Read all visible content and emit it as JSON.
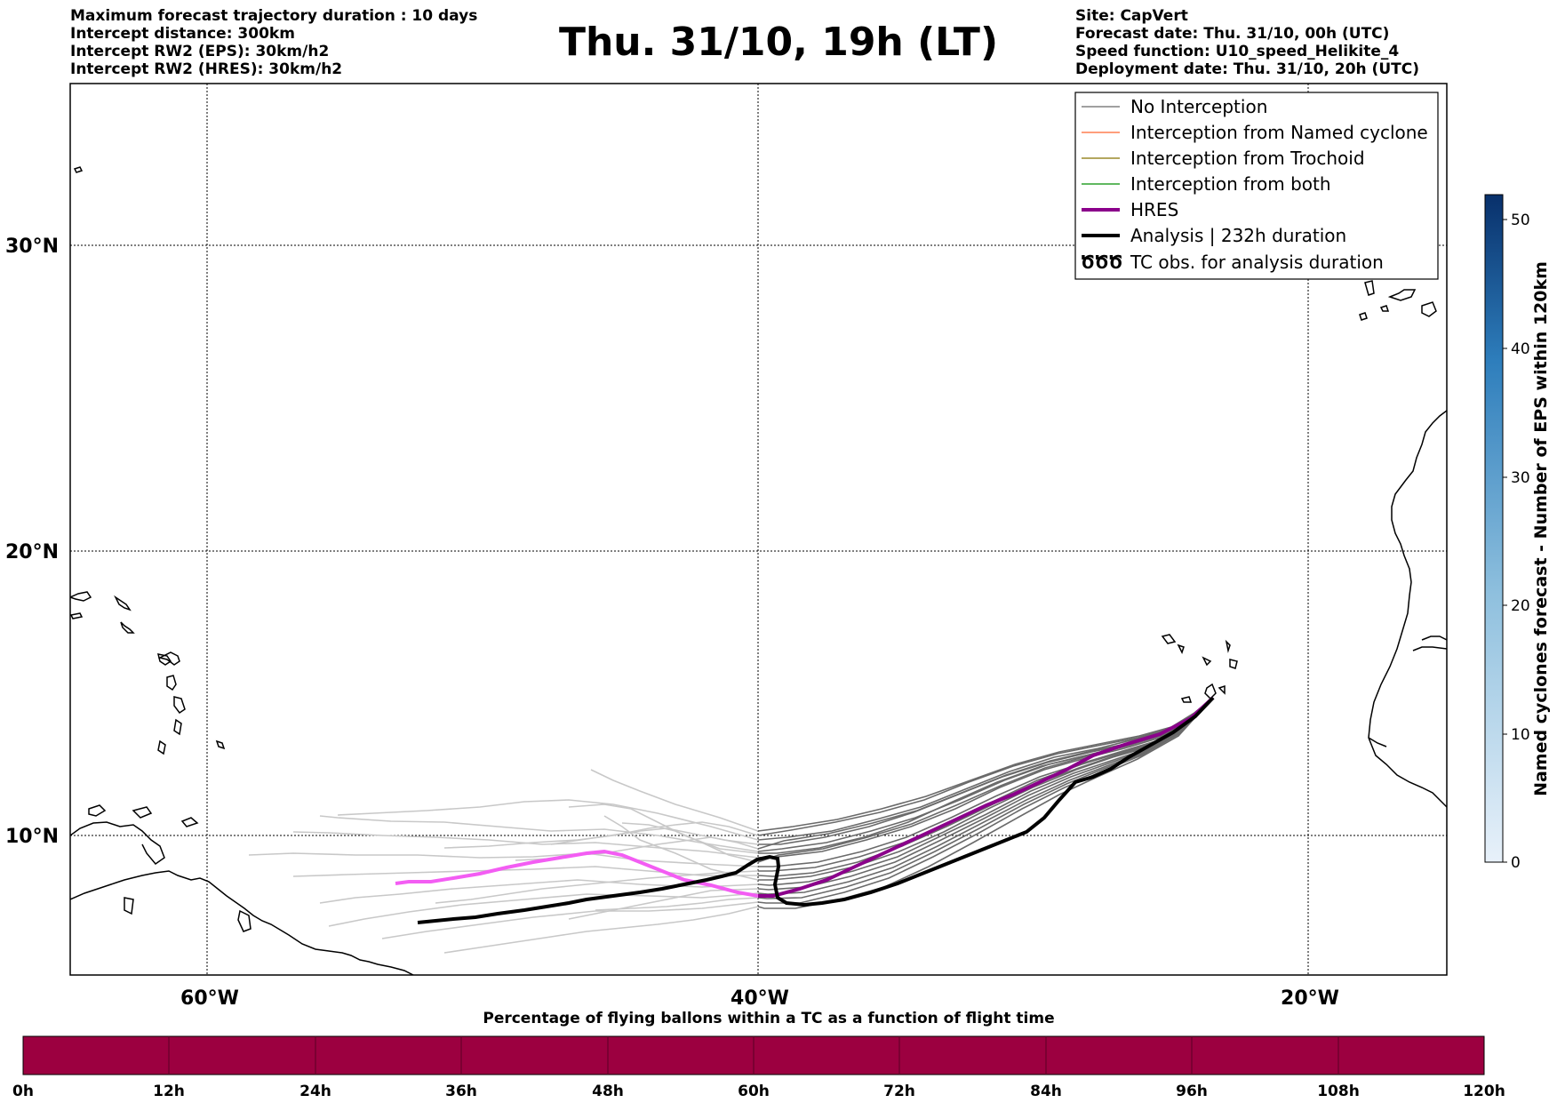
{
  "header": {
    "left_lines": [
      "Maximum forecast trajectory duration : 10 days",
      "Intercept distance: 300km",
      "Intercept RW2 (EPS):  30km/h2",
      "Intercept RW2 (HRES): 30km/h2"
    ],
    "title": "Thu. 31/10, 19h (LT)",
    "right_lines": [
      "Site: CapVert",
      "Forecast date: Thu. 31/10, 00h (UTC)",
      "Speed function: U10_speed_Helikite_4",
      "Deployment date: Thu. 31/10, 20h (UTC)"
    ]
  },
  "map": {
    "lat_labels": [
      "30°N",
      "20°N",
      "10°N"
    ],
    "lon_labels": [
      "60°W",
      "40°W",
      "20°W"
    ],
    "gridlines": true
  },
  "legend": {
    "items": [
      {
        "label": "No Interception",
        "color": "#808080",
        "style": "thin"
      },
      {
        "label": "Interception from Named cyclone",
        "color": "#ff7f50",
        "style": "thin"
      },
      {
        "label": "Interception from Trochoid",
        "color": "#9a8a2a",
        "style": "thin"
      },
      {
        "label": "Interception from both",
        "color": "#2ca02c",
        "style": "thin"
      },
      {
        "label": "HRES",
        "color": "#8b008b",
        "style": "thick"
      },
      {
        "label": "Analysis | 232h duration",
        "color": "#000000",
        "style": "thick"
      },
      {
        "label": "TC obs. for analysis duration",
        "color": "#000000",
        "style": "symbol",
        "symbol": "ԾԾԾ"
      }
    ]
  },
  "colorbar": {
    "label": "Named cyclones forecast - Number of EPS within 120km",
    "ticks": [
      "50",
      "40",
      "30",
      "20",
      "10",
      "0"
    ],
    "colors": [
      "#e8f1fa",
      "#08306b"
    ]
  },
  "percentage_bar": {
    "title": "Percentage of flying ballons within a TC as a function of flight time",
    "ticks": [
      "0h",
      "12h",
      "24h",
      "36h",
      "48h",
      "60h",
      "72h",
      "84h",
      "96h",
      "108h",
      "120h"
    ],
    "color": "#9c0040"
  }
}
